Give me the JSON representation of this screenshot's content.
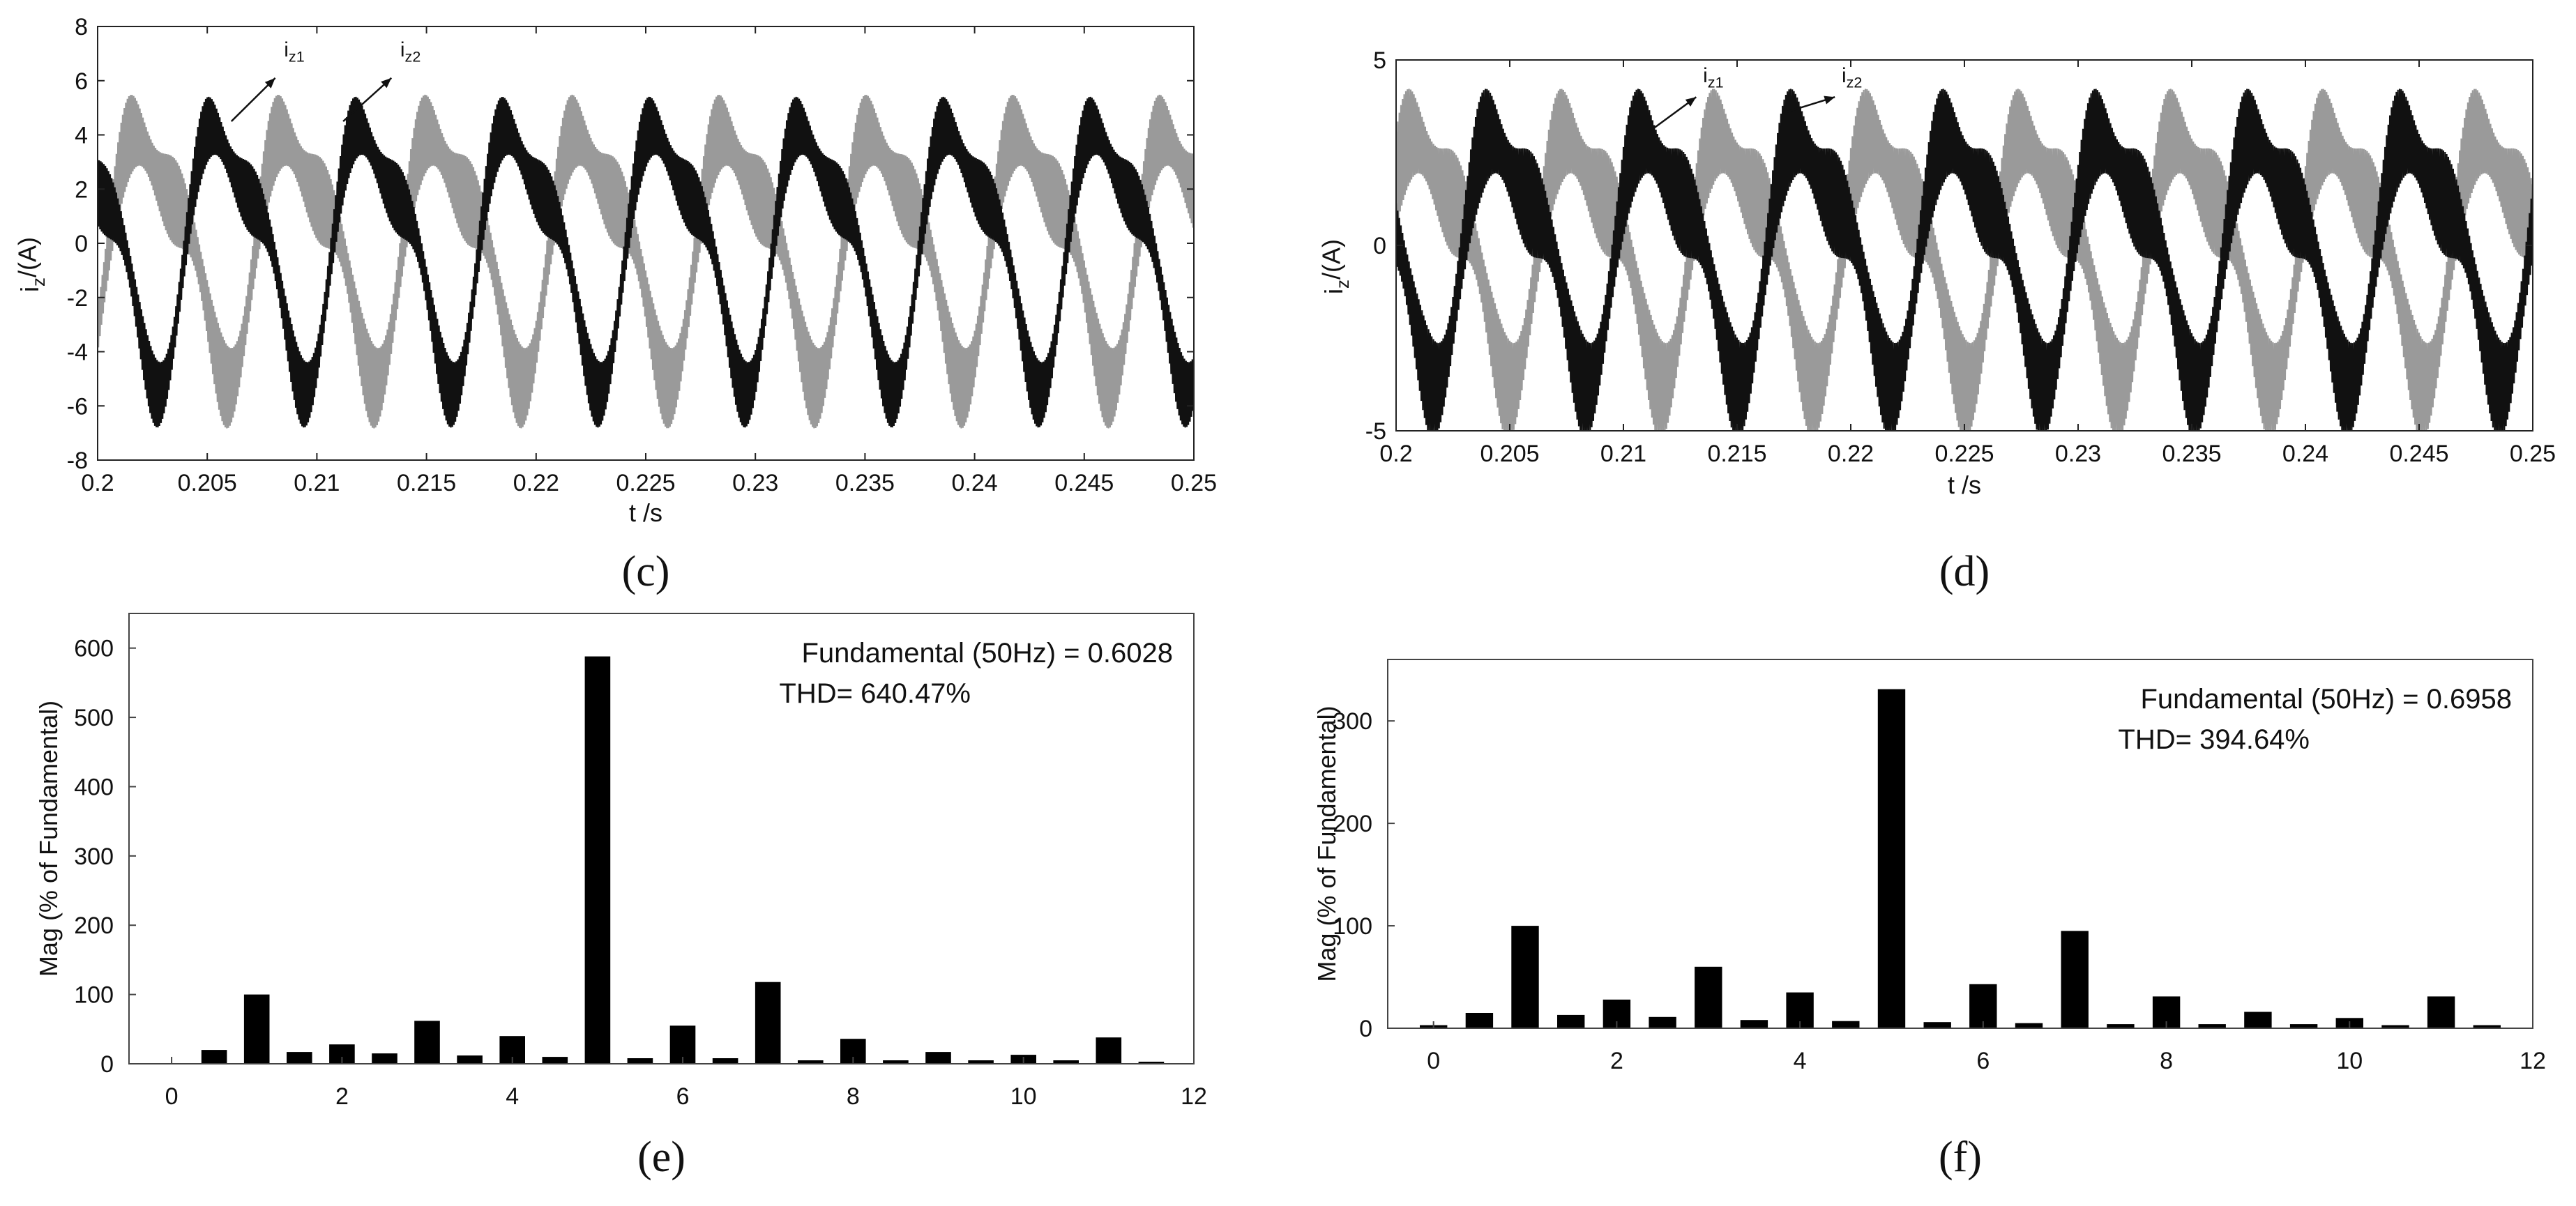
{
  "chart_data": [
    {
      "id": "c",
      "type": "line",
      "panel_label": "(c)",
      "xlabel": "t /s",
      "ylabel_main": "i",
      "ylabel_sub": "z",
      "ylabel_rest": "/(A)",
      "xlim": [
        0.2,
        0.25
      ],
      "ylim": [
        -8,
        8
      ],
      "xticks": [
        0.2,
        0.205,
        0.21,
        0.215,
        0.22,
        0.225,
        0.23,
        0.235,
        0.24,
        0.245,
        0.25
      ],
      "xtick_labels": [
        "0.2",
        "0.205",
        "0.21",
        "0.215",
        "0.22",
        "0.225",
        "0.23",
        "0.235",
        "0.24",
        "0.245",
        "0.25"
      ],
      "yticks": [
        -8,
        -6,
        -4,
        -2,
        0,
        2,
        4,
        6,
        8
      ],
      "ytick_labels": [
        "-8",
        "-6",
        "-4",
        "-2",
        "0",
        "2",
        "4",
        "6",
        "8"
      ],
      "series": [
        {
          "name": "iz1",
          "label_main": "i",
          "label_sub": "z1",
          "color": "#9a9a9a",
          "amplitude": 4.1,
          "period": 0.0067,
          "phase": 0.3,
          "ripple_amplitude": 1.6,
          "ripple_period": 0.00025
        },
        {
          "name": "iz2",
          "label_main": "i",
          "label_sub": "z2",
          "color": "#111111",
          "amplitude": 4.3,
          "period": 0.0067,
          "phase": 3.3,
          "ripple_amplitude": 1.3,
          "ripple_period": 0.00025
        }
      ],
      "annotations": [
        {
          "text_main": "i",
          "text_sub": "z1",
          "x": 0.2085,
          "y": 6.9,
          "arrow_from": [
            0.2061,
            4.5
          ],
          "arrow_to": [
            0.2081,
            6.1
          ]
        },
        {
          "text_main": "i",
          "text_sub": "z2",
          "x": 0.2138,
          "y": 6.9,
          "arrow_from": [
            0.2112,
            4.5
          ],
          "arrow_to": [
            0.2134,
            6.1
          ]
        }
      ]
    },
    {
      "id": "d",
      "type": "line",
      "panel_label": "(d)",
      "xlabel": "t /s",
      "ylabel_main": "i",
      "ylabel_sub": "z",
      "ylabel_rest": "/(A)",
      "xlim": [
        0.2,
        0.25
      ],
      "ylim": [
        -5,
        5
      ],
      "xticks": [
        0.2,
        0.205,
        0.21,
        0.215,
        0.22,
        0.225,
        0.23,
        0.235,
        0.24,
        0.245,
        0.25
      ],
      "xtick_labels": [
        "0.2",
        "0.205",
        "0.21",
        "0.215",
        "0.22",
        "0.225",
        "0.23",
        "0.235",
        "0.24",
        "0.245",
        "0.25"
      ],
      "yticks": [
        -5,
        0,
        5
      ],
      "ytick_labels": [
        "-5",
        "0",
        "5"
      ],
      "series": [
        {
          "name": "iz1",
          "label_main": "i",
          "label_sub": "z1",
          "color": "#9a9a9a",
          "amplitude": 3.0,
          "period": 0.0067,
          "phase": 1.2,
          "ripple_amplitude": 1.4,
          "ripple_period": 0.00025
        },
        {
          "name": "iz2",
          "label_main": "i",
          "label_sub": "z2",
          "color": "#111111",
          "amplitude": 3.0,
          "period": 0.0067,
          "phase": 4.3,
          "ripple_amplitude": 1.4,
          "ripple_period": 0.00025
        }
      ],
      "annotations": [
        {
          "text_main": "i",
          "text_sub": "z1",
          "x": 0.2135,
          "y": 4.4,
          "arrow_from": [
            0.2112,
            3.1
          ],
          "arrow_to": [
            0.2132,
            4.0
          ]
        },
        {
          "text_main": "i",
          "text_sub": "z2",
          "x": 0.2196,
          "y": 4.4,
          "arrow_from": [
            0.2172,
            3.6
          ],
          "arrow_to": [
            0.2193,
            4.0
          ]
        }
      ]
    },
    {
      "id": "e",
      "type": "bar",
      "panel_label": "(e)",
      "ylabel": "Mag (% of Fundamental)",
      "xlim": [
        -0.5,
        12
      ],
      "ylim": [
        0,
        650
      ],
      "xticks": [
        0,
        2,
        4,
        6,
        8,
        10,
        12
      ],
      "xtick_labels": [
        "0",
        "2",
        "4",
        "6",
        "8",
        "10",
        "12"
      ],
      "yticks": [
        0,
        100,
        200,
        300,
        400,
        500,
        600
      ],
      "ytick_labels": [
        "0",
        "100",
        "200",
        "300",
        "400",
        "500",
        "600"
      ],
      "bar_color": "#000000",
      "x": [
        0.5,
        1,
        1.5,
        2,
        2.5,
        3,
        3.5,
        4,
        4.5,
        5,
        5.5,
        6,
        6.5,
        7,
        7.5,
        8,
        8.5,
        9,
        9.5,
        10,
        10.5,
        11,
        11.5
      ],
      "values": [
        20,
        100,
        17,
        28,
        15,
        62,
        12,
        40,
        10,
        588,
        8,
        55,
        8,
        118,
        5,
        36,
        5,
        17,
        5,
        13,
        5,
        38,
        3
      ],
      "info_line1": "Fundamental (50Hz) = 0.6028",
      "info_line2": "THD= 640.47%"
    },
    {
      "id": "f",
      "type": "bar",
      "panel_label": "(f)",
      "ylabel": "Mag (% of Fundamental)",
      "xlim": [
        -0.5,
        12
      ],
      "ylim": [
        0,
        360
      ],
      "xticks": [
        0,
        2,
        4,
        6,
        8,
        10,
        12
      ],
      "xtick_labels": [
        "0",
        "2",
        "4",
        "6",
        "8",
        "10",
        "12"
      ],
      "yticks": [
        0,
        100,
        200,
        300
      ],
      "ytick_labels": [
        "0",
        "100",
        "200",
        "300"
      ],
      "bar_color": "#000000",
      "x": [
        0,
        0.5,
        1,
        1.5,
        2,
        2.5,
        3,
        3.5,
        4,
        4.5,
        5,
        5.5,
        6,
        6.5,
        7,
        7.5,
        8,
        8.5,
        9,
        9.5,
        10,
        10.5,
        11,
        11.5
      ],
      "values": [
        3,
        15,
        100,
        13,
        28,
        11,
        60,
        8,
        35,
        7,
        331,
        6,
        43,
        5,
        95,
        4,
        31,
        4,
        16,
        4,
        10,
        3,
        31,
        3
      ],
      "info_line1": "Fundamental (50Hz) = 0.6958",
      "info_line2": "THD= 394.64%"
    }
  ]
}
